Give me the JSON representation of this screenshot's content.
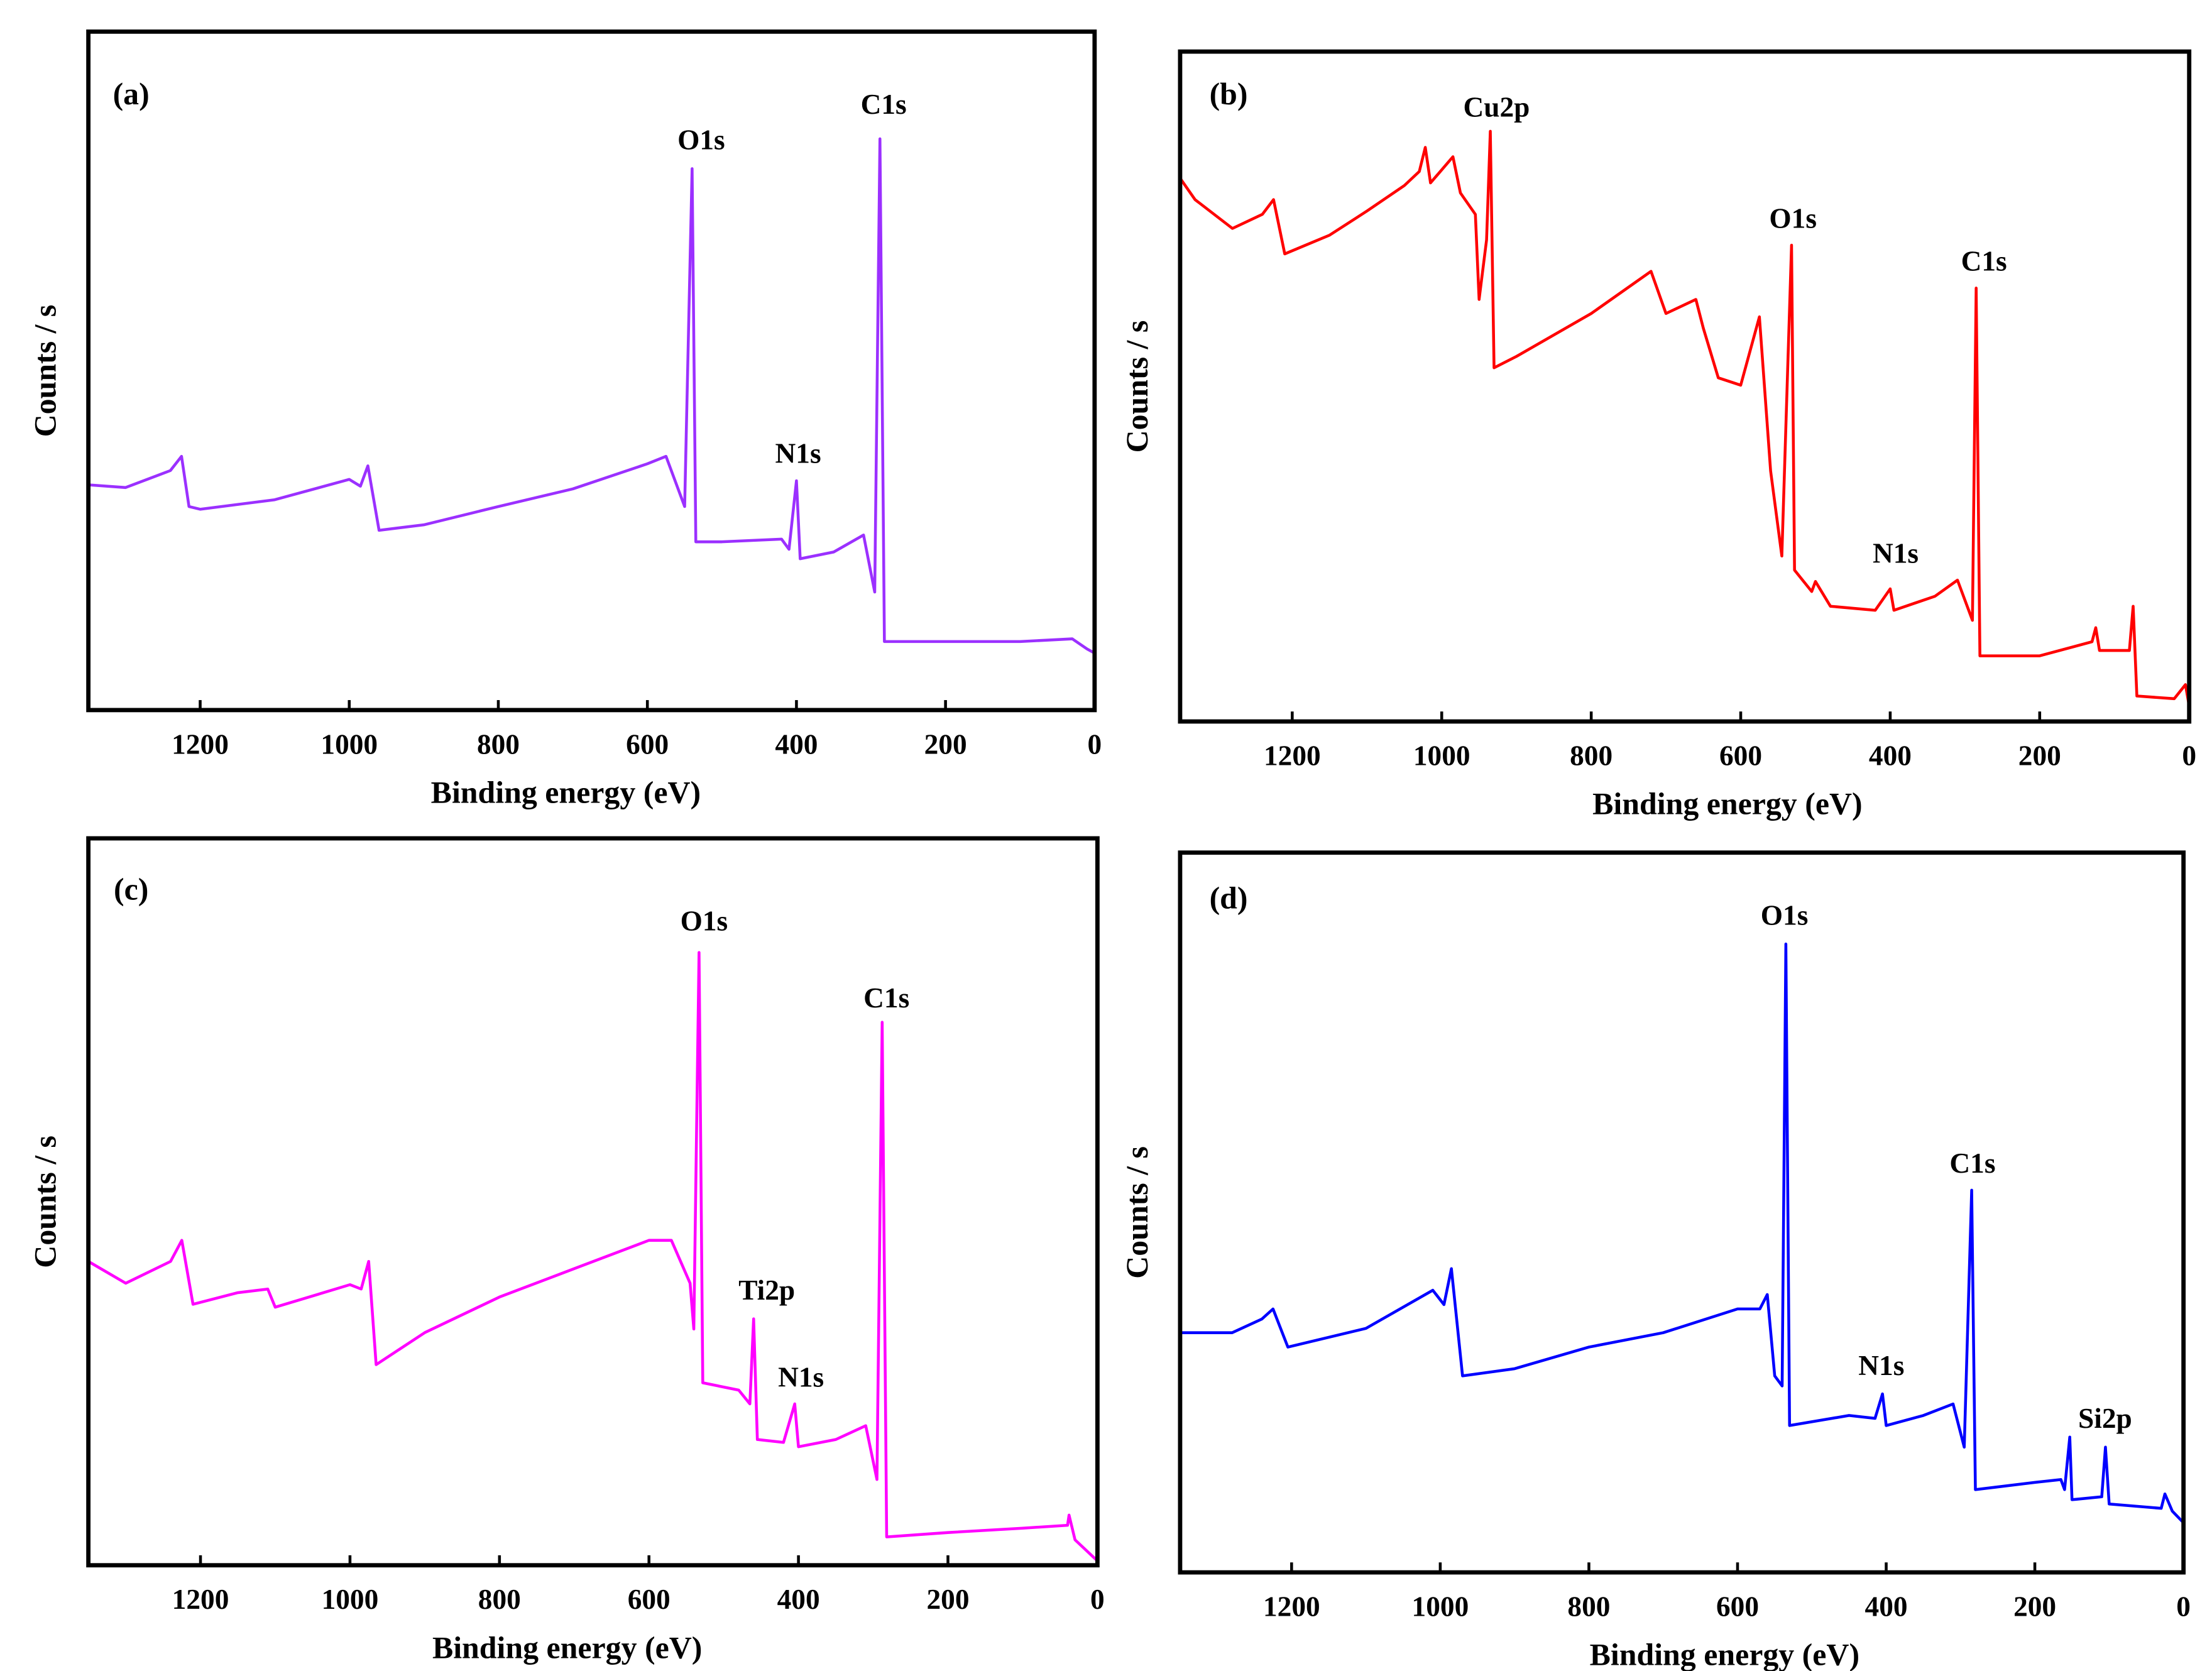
{
  "chart_data": [
    {
      "type": "line",
      "title": "(a)",
      "xlabel": "Binding energy (eV)",
      "ylabel": "Counts / s",
      "color": "#9b30ff",
      "annotations": [
        "O1s",
        "N1s",
        "C1s"
      ],
      "xlim": [
        1350,
        0
      ],
      "xticks": [
        1200,
        1000,
        800,
        600,
        400,
        200,
        0
      ],
      "ylim": [
        0,
        100
      ],
      "x": [
        1350,
        1300,
        1240,
        1225,
        1215,
        1200,
        1100,
        1000,
        985,
        975,
        960,
        900,
        800,
        700,
        600,
        575,
        550,
        540,
        535,
        500,
        420,
        410,
        400,
        395,
        350,
        310,
        295,
        288,
        282,
        200,
        100,
        30,
        10,
        0
      ],
      "values": [
        33.2,
        32.8,
        35.3,
        37.4,
        30,
        29.6,
        31,
        34,
        33,
        36,
        26.5,
        27.3,
        30,
        32.6,
        36.3,
        37.4,
        30,
        79.8,
        24.8,
        24.8,
        25.2,
        23.7,
        33.8,
        22.3,
        23.3,
        25.8,
        17.4,
        84.2,
        10.1,
        10.1,
        10.1,
        10.5,
        9,
        8.4
      ]
    },
    {
      "type": "line",
      "title": "(b)",
      "xlabel": "Binding energy (eV)",
      "ylabel": "Counts / s",
      "color": "#ff0000",
      "annotations": [
        "Cu2p",
        "O1s",
        "N1s",
        "C1s"
      ],
      "xlim": [
        1350,
        0
      ],
      "xticks": [
        1200,
        1000,
        800,
        600,
        400,
        200,
        0
      ],
      "ylim": [
        0,
        100
      ],
      "x": [
        1350,
        1330,
        1280,
        1240,
        1225,
        1210,
        1150,
        1100,
        1050,
        1030,
        1022,
        1015,
        985,
        975,
        955,
        950,
        940,
        935,
        930,
        900,
        800,
        720,
        700,
        660,
        650,
        630,
        600,
        575,
        560,
        545,
        532,
        528,
        505,
        500,
        480,
        420,
        400,
        395,
        340,
        310,
        290,
        285,
        280,
        200,
        130,
        125,
        120,
        80,
        75,
        70,
        20,
        5,
        0
      ],
      "values": [
        81.1,
        77.9,
        73.6,
        75.7,
        77.9,
        69.8,
        72.6,
        76.2,
        80,
        82.1,
        85.7,
        80.4,
        84.3,
        78.9,
        75.7,
        63,
        71.9,
        88.1,
        52.8,
        54.5,
        60.9,
        67.2,
        60.9,
        63,
        58.7,
        51.3,
        50.2,
        60.4,
        37.4,
        24.7,
        71.1,
        22.6,
        19.4,
        20.9,
        17.2,
        16.6,
        19.8,
        16.6,
        18.7,
        21.1,
        15.1,
        64.7,
        9.8,
        9.8,
        11.9,
        14,
        10.6,
        10.6,
        17.2,
        3.8,
        3.4,
        5.5,
        2.3
      ]
    },
    {
      "type": "line",
      "title": "(c)",
      "xlabel": "Binding energy (eV)",
      "ylabel": "Counts / s",
      "color": "#ff00ff",
      "annotations": [
        "O1s",
        "Ti2p",
        "N1s",
        "C1s"
      ],
      "xlim": [
        1350,
        0
      ],
      "xticks": [
        1200,
        1000,
        800,
        600,
        400,
        200,
        0
      ],
      "ylim": [
        0,
        100
      ],
      "x": [
        1350,
        1300,
        1240,
        1225,
        1210,
        1150,
        1110,
        1100,
        1000,
        985,
        975,
        965,
        900,
        800,
        700,
        600,
        570,
        545,
        540,
        533,
        528,
        480,
        465,
        460,
        455,
        420,
        405,
        400,
        350,
        310,
        295,
        288,
        282,
        200,
        100,
        40,
        38,
        30,
        0
      ],
      "values": [
        41.8,
        38.8,
        41.8,
        44.7,
        35.9,
        37.5,
        38,
        35.5,
        38.6,
        38,
        41.8,
        27.6,
        32,
        36.9,
        40.8,
        44.7,
        44.7,
        38.8,
        32.5,
        84.3,
        25.1,
        24.1,
        22.2,
        33.9,
        17.3,
        16.9,
        22.2,
        16.3,
        17.3,
        19.2,
        11.8,
        74.7,
        3.9,
        4.5,
        5.1,
        5.5,
        6.9,
        3.5,
        0.6
      ]
    },
    {
      "type": "line",
      "title": "(d)",
      "xlabel": "Binding energy (eV)",
      "ylabel": "Counts / s",
      "color": "#0000ff",
      "annotations": [
        "O1s",
        "N1s",
        "C1s",
        "Si2p"
      ],
      "xlim": [
        1350,
        0
      ],
      "xticks": [
        1200,
        1000,
        800,
        600,
        400,
        200,
        0
      ],
      "ylim": [
        0,
        100
      ],
      "x": [
        1350,
        1280,
        1240,
        1225,
        1205,
        1100,
        1010,
        995,
        985,
        970,
        900,
        800,
        700,
        600,
        570,
        560,
        550,
        540,
        535,
        530,
        450,
        415,
        405,
        400,
        350,
        310,
        295,
        285,
        280,
        200,
        165,
        160,
        153,
        150,
        110,
        105,
        100,
        30,
        25,
        15,
        0
      ],
      "values": [
        33.3,
        33.3,
        35.2,
        36.6,
        31.3,
        33.9,
        39.2,
        37.2,
        42.2,
        27.3,
        28.3,
        31.3,
        33.3,
        36.6,
        36.6,
        38.6,
        27.3,
        25.9,
        87.3,
        20.4,
        21.8,
        21.4,
        24.8,
        20.4,
        21.8,
        23.4,
        17.4,
        53.1,
        11.5,
        12.5,
        12.9,
        11.5,
        18.8,
        10.1,
        10.5,
        17.4,
        9.5,
        8.9,
        10.9,
        8.5,
        6.9
      ]
    }
  ]
}
